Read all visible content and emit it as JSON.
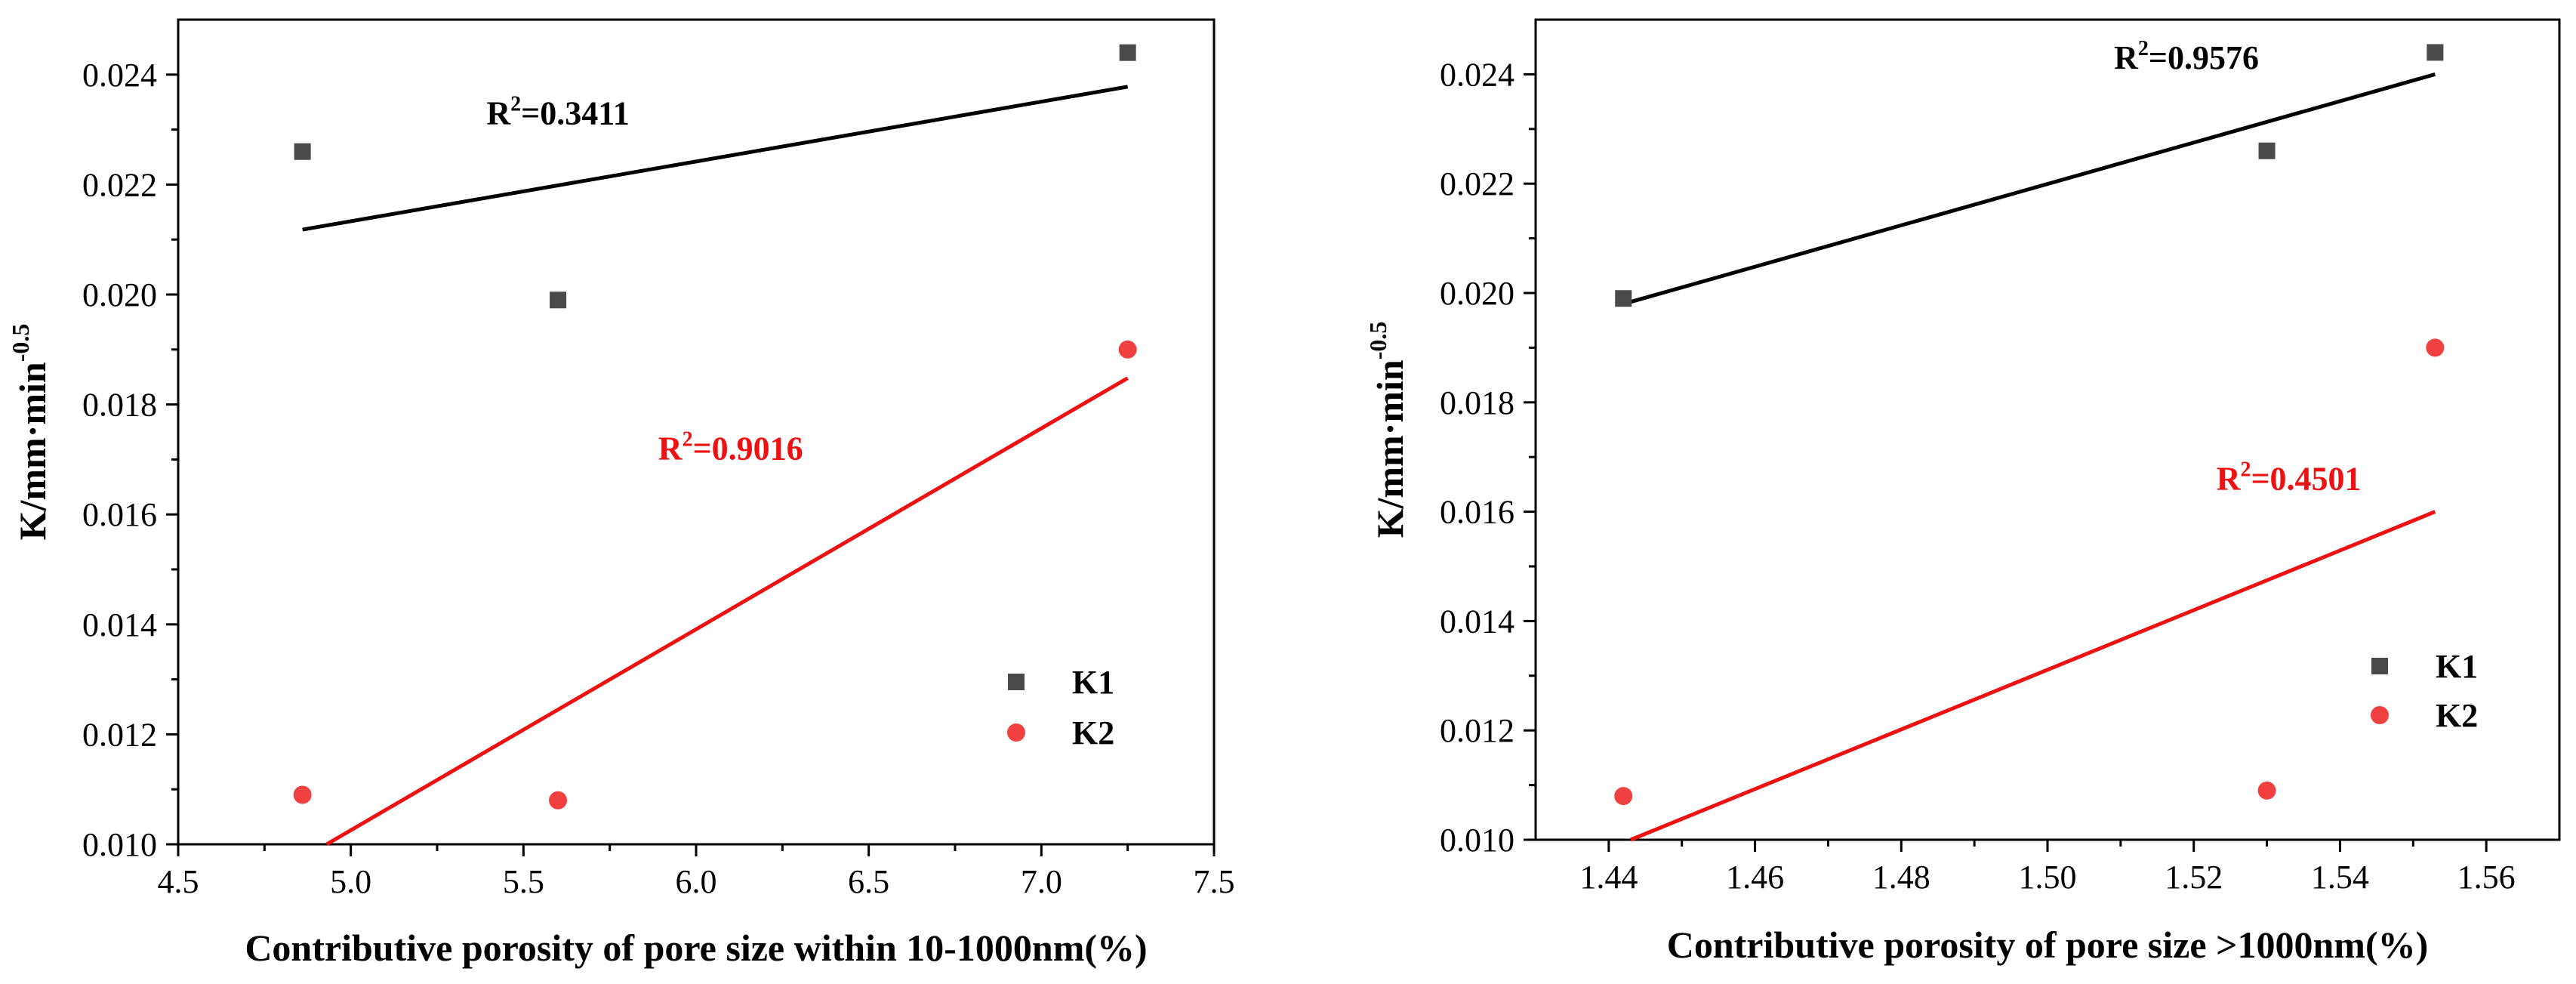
{
  "chart_data": [
    {
      "type": "scatter",
      "xlabel": "Contributive porosity of pore size within 10-1000nm(%)",
      "ylabel_base": "K/mm·min",
      "ylabel_exp": "-0.5",
      "xlim": [
        4.5,
        7.5
      ],
      "ylim": [
        0.01,
        0.025
      ],
      "xticks": [
        "4.5",
        "5.0",
        "5.5",
        "6.0",
        "6.5",
        "7.0",
        "7.5"
      ],
      "yticks": [
        "0.010",
        "0.012",
        "0.014",
        "0.016",
        "0.018",
        "0.020",
        "0.022",
        "0.024"
      ],
      "legend": {
        "position": "lower-right",
        "entries": [
          "K1",
          "K2"
        ]
      },
      "series": [
        {
          "name": "K1",
          "marker": "square",
          "color": "#4a4a4a",
          "x": [
            4.86,
            5.6,
            7.25
          ],
          "y": [
            0.0226,
            0.0199,
            0.0244
          ],
          "fit": {
            "x": [
              4.86,
              7.25
            ],
            "y": [
              0.02118,
              0.02378
            ],
            "color": "#000000",
            "r2_base": "R",
            "r2_sup": "2",
            "r2_value": "=0.3411",
            "r2_at": [
              5.6,
              0.0231
            ]
          }
        },
        {
          "name": "K2",
          "marker": "circle",
          "color": "#f04040",
          "x": [
            4.86,
            5.6,
            7.25
          ],
          "y": [
            0.0109,
            0.0108,
            0.019
          ],
          "fit": {
            "x": [
              4.93,
              7.25
            ],
            "y": [
              0.01,
              0.01848
            ],
            "color": "#ee1111",
            "r2_base": "R",
            "r2_sup": "2",
            "r2_value": "=0.9016",
            "r2_at": [
              6.1,
              0.017
            ]
          }
        }
      ]
    },
    {
      "type": "scatter",
      "xlabel": "Contributive porosity of pore size >1000nm(%)",
      "ylabel_base": "K/mm·min",
      "ylabel_exp": "-0.5",
      "xlim": [
        1.43,
        1.57
      ],
      "ylim": [
        0.01,
        0.025
      ],
      "xticks": [
        "1.44",
        "1.46",
        "1.48",
        "1.50",
        "1.52",
        "1.54",
        "1.56"
      ],
      "yticks": [
        "0.010",
        "0.012",
        "0.014",
        "0.016",
        "0.018",
        "0.020",
        "0.022",
        "0.024"
      ],
      "legend": {
        "position": "lower-right",
        "entries": [
          "K1",
          "K2"
        ]
      },
      "series": [
        {
          "name": "K1",
          "marker": "square",
          "color": "#4a4a4a",
          "x": [
            1.442,
            1.53,
            1.553
          ],
          "y": [
            0.0199,
            0.0226,
            0.0244
          ],
          "fit": {
            "x": [
              1.442,
              1.553
            ],
            "y": [
              0.0198,
              0.024
            ],
            "color": "#000000",
            "r2_base": "R",
            "r2_sup": "2",
            "r2_value": "=0.9576",
            "r2_at": [
              1.519,
              0.0241
            ]
          }
        },
        {
          "name": "K2",
          "marker": "circle",
          "color": "#f04040",
          "x": [
            1.442,
            1.53,
            1.553
          ],
          "y": [
            0.0108,
            0.0109,
            0.019
          ],
          "fit": {
            "x": [
              1.443,
              1.553
            ],
            "y": [
              0.01,
              0.016
            ],
            "color": "#ee1111",
            "r2_base": "R",
            "r2_sup": "2",
            "r2_value": "=0.4501",
            "r2_at": [
              1.533,
              0.0164
            ]
          }
        }
      ]
    }
  ]
}
